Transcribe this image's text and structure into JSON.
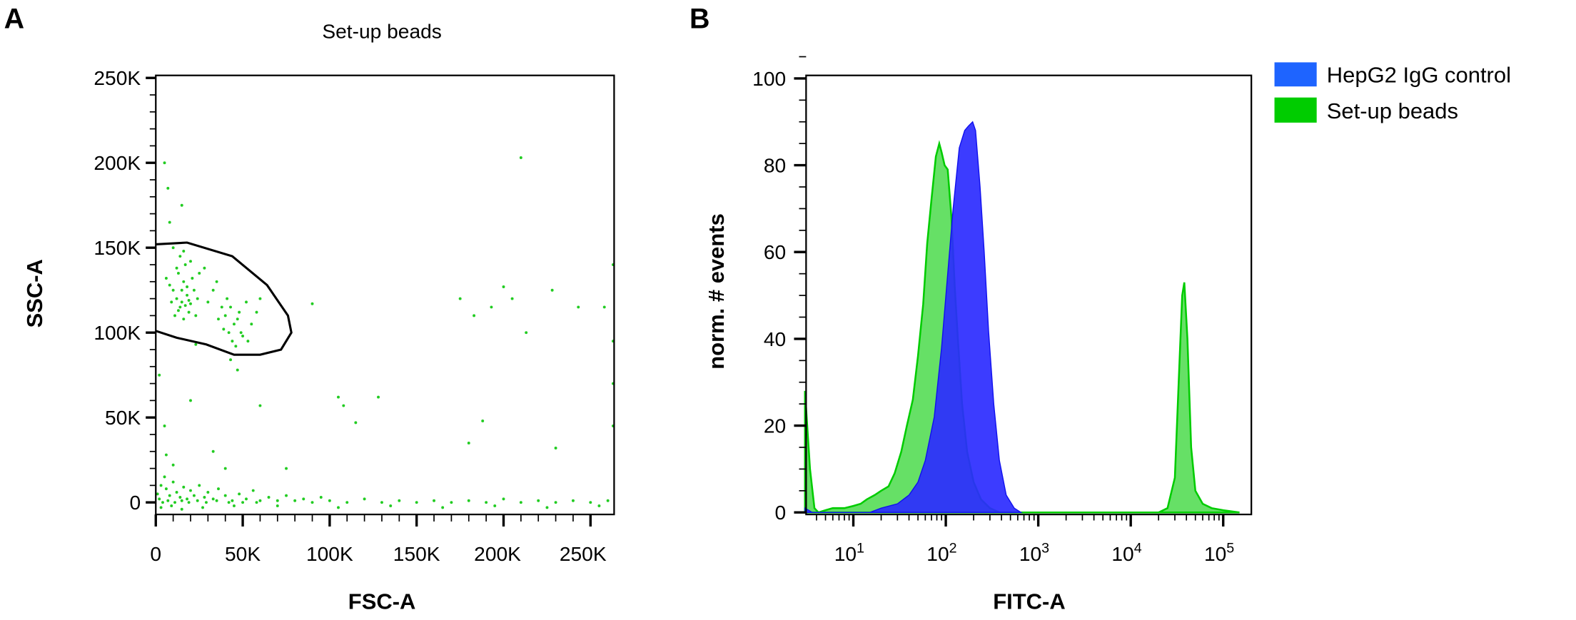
{
  "panel_labels": [
    "A",
    "B"
  ],
  "colors": {
    "scatter_point": "#22cc22",
    "gate": "#000000",
    "green_fill": "#66e066",
    "green_line": "#00cc00",
    "blue_fill": "#2b2bff",
    "legend_blue": "#1e64ff",
    "legend_green": "#00cc00"
  },
  "chart_data": [
    {
      "type": "scatter",
      "title": "Set-up beads",
      "xlabel": "FSC-A",
      "ylabel": "SSC-A",
      "xlim": [
        0,
        264000
      ],
      "ylim": [
        -7000,
        260000
      ],
      "x_ticks": [
        "0",
        "50K",
        "100K",
        "150K",
        "200K",
        "250K"
      ],
      "y_ticks": [
        "0",
        "50K",
        "100K",
        "150K",
        "200K",
        "250K"
      ],
      "grid": false,
      "units_note_k": "values in thousands (K)",
      "gate_polygon": [
        [
          0,
          152
        ],
        [
          18,
          153
        ],
        [
          44,
          145
        ],
        [
          64,
          128
        ],
        [
          76,
          110
        ],
        [
          78,
          100
        ],
        [
          72,
          90
        ],
        [
          60,
          87
        ],
        [
          45,
          87
        ],
        [
          29,
          93
        ],
        [
          12,
          97
        ],
        [
          0,
          101
        ]
      ],
      "points": [
        [
          12,
          120
        ],
        [
          15,
          118
        ],
        [
          18,
          122
        ],
        [
          14,
          115
        ],
        [
          16,
          130
        ],
        [
          10,
          125
        ],
        [
          20,
          117
        ],
        [
          13,
          135
        ],
        [
          17,
          140
        ],
        [
          8,
          128
        ],
        [
          22,
          125
        ],
        [
          19,
          112
        ],
        [
          11,
          110
        ],
        [
          14,
          145
        ],
        [
          16,
          108
        ],
        [
          21,
          132
        ],
        [
          9,
          118
        ],
        [
          18,
          127
        ],
        [
          15,
          125
        ],
        [
          12,
          138
        ],
        [
          24,
          120
        ],
        [
          6,
          132
        ],
        [
          17,
          116
        ],
        [
          13,
          113
        ],
        [
          20,
          142
        ],
        [
          23,
          110
        ],
        [
          16,
          148
        ],
        [
          10,
          150
        ],
        [
          25,
          135
        ],
        [
          19,
          119
        ],
        [
          40,
          110
        ],
        [
          45,
          105
        ],
        [
          42,
          100
        ],
        [
          48,
          112
        ],
        [
          38,
          115
        ],
        [
          50,
          98
        ],
        [
          44,
          95
        ],
        [
          36,
          108
        ],
        [
          52,
          118
        ],
        [
          46,
          92
        ],
        [
          41,
          120
        ],
        [
          55,
          105
        ],
        [
          39,
          102
        ],
        [
          47,
          108
        ],
        [
          43,
          115
        ],
        [
          33,
          125
        ],
        [
          58,
          112
        ],
        [
          49,
          100
        ],
        [
          35,
          130
        ],
        [
          53,
          95
        ],
        [
          30,
          118
        ],
        [
          60,
          120
        ],
        [
          28,
          138
        ],
        [
          5,
          200
        ],
        [
          7,
          185
        ],
        [
          15,
          175
        ],
        [
          90,
          117
        ],
        [
          8,
          165
        ],
        [
          210,
          203
        ],
        [
          200,
          127
        ],
        [
          205,
          120
        ],
        [
          193,
          115
        ],
        [
          175,
          120
        ],
        [
          183,
          110
        ],
        [
          228,
          125
        ],
        [
          243,
          115
        ],
        [
          258,
          115
        ],
        [
          213,
          100
        ],
        [
          23,
          93
        ],
        [
          43,
          84
        ],
        [
          47,
          78
        ],
        [
          2,
          75
        ],
        [
          20,
          60
        ],
        [
          60,
          57
        ],
        [
          105,
          62
        ],
        [
          108,
          57
        ],
        [
          128,
          62
        ],
        [
          115,
          47
        ],
        [
          188,
          48
        ],
        [
          5,
          45
        ],
        [
          180,
          35
        ],
        [
          230,
          32
        ],
        [
          33,
          30
        ],
        [
          6,
          28
        ],
        [
          10,
          22
        ],
        [
          40,
          20
        ],
        [
          75,
          20
        ],
        [
          263,
          140
        ],
        [
          263,
          95
        ],
        [
          263,
          70
        ],
        [
          263,
          45
        ],
        [
          1,
          5
        ],
        [
          3,
          10
        ],
        [
          5,
          15
        ],
        [
          2,
          2
        ],
        [
          6,
          8
        ],
        [
          8,
          4
        ],
        [
          10,
          12
        ],
        [
          12,
          6
        ],
        [
          14,
          3
        ],
        [
          16,
          9
        ],
        [
          18,
          2
        ],
        [
          20,
          7
        ],
        [
          22,
          4
        ],
        [
          25,
          10
        ],
        [
          28,
          3
        ],
        [
          30,
          6
        ],
        [
          33,
          2
        ],
        [
          36,
          8
        ],
        [
          40,
          4
        ],
        [
          44,
          1
        ],
        [
          48,
          5
        ],
        [
          52,
          2
        ],
        [
          56,
          7
        ],
        [
          60,
          1
        ],
        [
          65,
          3
        ],
        [
          70,
          1
        ],
        [
          75,
          4
        ],
        [
          80,
          1
        ],
        [
          85,
          2
        ],
        [
          90,
          0
        ],
        [
          95,
          3
        ],
        [
          100,
          1
        ],
        [
          110,
          0
        ],
        [
          120,
          2
        ],
        [
          130,
          0
        ],
        [
          140,
          1
        ],
        [
          150,
          0
        ],
        [
          160,
          1
        ],
        [
          170,
          0
        ],
        [
          180,
          1
        ],
        [
          190,
          0
        ],
        [
          200,
          2
        ],
        [
          210,
          0
        ],
        [
          220,
          1
        ],
        [
          230,
          0
        ],
        [
          240,
          1
        ],
        [
          250,
          0
        ],
        [
          260,
          1
        ],
        [
          4,
          0
        ],
        [
          7,
          1
        ],
        [
          11,
          0
        ],
        [
          15,
          1
        ],
        [
          19,
          0
        ],
        [
          24,
          1
        ],
        [
          29,
          0
        ],
        [
          35,
          1
        ],
        [
          42,
          0
        ],
        [
          50,
          0
        ],
        [
          58,
          0
        ],
        [
          3,
          -3
        ],
        [
          9,
          -2
        ],
        [
          15,
          -4
        ],
        [
          27,
          -3
        ],
        [
          45,
          -2
        ],
        [
          70,
          -2
        ],
        [
          105,
          -3
        ],
        [
          135,
          -2
        ],
        [
          165,
          -3
        ],
        [
          195,
          -2
        ],
        [
          225,
          -3
        ],
        [
          255,
          -2
        ]
      ]
    },
    {
      "type": "area",
      "xlabel": "FITC-A",
      "ylabel": "norm. # events",
      "x_scale": "log",
      "xlim": [
        3,
        200000
      ],
      "ylim": [
        0,
        105
      ],
      "x_ticks": [
        {
          "base": "10",
          "exp": "1"
        },
        {
          "base": "10",
          "exp": "2"
        },
        {
          "base": "10",
          "exp": "3"
        },
        {
          "base": "10",
          "exp": "4"
        },
        {
          "base": "10",
          "exp": "5"
        }
      ],
      "y_ticks": [
        "0",
        "20",
        "40",
        "60",
        "80",
        "100"
      ],
      "legend_position": "top-right-outside",
      "series": [
        {
          "name": "Set-up beads",
          "points": [
            [
              3,
              28
            ],
            [
              3.4,
              10
            ],
            [
              3.8,
              1
            ],
            [
              4.2,
              0
            ],
            [
              5,
              0.5
            ],
            [
              6,
              1
            ],
            [
              8,
              1
            ],
            [
              10,
              1.5
            ],
            [
              12,
              2
            ],
            [
              14,
              3
            ],
            [
              17,
              4
            ],
            [
              20,
              5
            ],
            [
              24,
              6
            ],
            [
              28,
              9
            ],
            [
              33,
              14
            ],
            [
              38,
              20
            ],
            [
              44,
              26
            ],
            [
              50,
              36
            ],
            [
              57,
              48
            ],
            [
              63,
              62
            ],
            [
              70,
              72
            ],
            [
              78,
              82
            ],
            [
              85,
              85
            ],
            [
              90,
              83
            ],
            [
              97,
              80
            ],
            [
              105,
              79
            ],
            [
              115,
              68
            ],
            [
              125,
              52
            ],
            [
              135,
              40
            ],
            [
              150,
              25
            ],
            [
              170,
              14
            ],
            [
              200,
              7
            ],
            [
              240,
              3
            ],
            [
              300,
              1
            ],
            [
              380,
              0
            ],
            [
              20000,
              0
            ],
            [
              25000,
              1
            ],
            [
              30000,
              8
            ],
            [
              33000,
              30
            ],
            [
              36000,
              50
            ],
            [
              38000,
              53
            ],
            [
              41000,
              40
            ],
            [
              45000,
              15
            ],
            [
              50000,
              5
            ],
            [
              60000,
              2
            ],
            [
              75000,
              1
            ],
            [
              100000,
              0.5
            ],
            [
              150000,
              0
            ]
          ]
        },
        {
          "name": "HepG2 IgG control",
          "points": [
            [
              3,
              1
            ],
            [
              3.6,
              0
            ],
            [
              15,
              0
            ],
            [
              20,
              1
            ],
            [
              30,
              2
            ],
            [
              40,
              4
            ],
            [
              50,
              7
            ],
            [
              60,
              12
            ],
            [
              75,
              22
            ],
            [
              90,
              38
            ],
            [
              105,
              55
            ],
            [
              120,
              70
            ],
            [
              140,
              84
            ],
            [
              160,
              88
            ],
            [
              175,
              89
            ],
            [
              195,
              90
            ],
            [
              210,
              88
            ],
            [
              235,
              75
            ],
            [
              260,
              60
            ],
            [
              290,
              42
            ],
            [
              330,
              25
            ],
            [
              380,
              12
            ],
            [
              450,
              4
            ],
            [
              550,
              1
            ],
            [
              650,
              0
            ]
          ]
        }
      ]
    }
  ]
}
